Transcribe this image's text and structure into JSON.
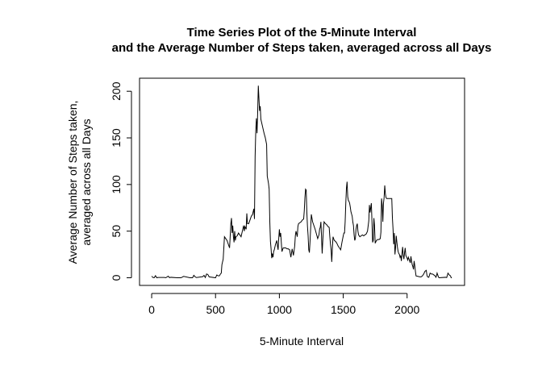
{
  "chart_data": {
    "type": "line",
    "title_lines": [
      "Time Series Plot of the 5-Minute Interval",
      "and the Average Number of Steps taken, averaged across all Days"
    ],
    "xlabel": "5-Minute Interval",
    "ylabel_lines": [
      "Average Number of Steps taken,",
      "averaged across all Days"
    ],
    "xlim": [
      -95,
      2450
    ],
    "ylim": [
      -8.2,
      214
    ],
    "x_ticks": [
      0,
      500,
      1000,
      1500,
      2000
    ],
    "x_tick_labels": [
      "0",
      "500",
      "1000",
      "1500",
      "2000"
    ],
    "y_ticks": [
      0,
      50,
      100,
      150,
      200
    ],
    "y_tick_labels": [
      "0",
      "50",
      "100",
      "150",
      "200"
    ],
    "grid": false,
    "series": [
      {
        "color": "#000000",
        "points": [
          [
            0,
            1.7
          ],
          [
            10,
            0.3
          ],
          [
            20,
            0.1
          ],
          [
            30,
            2.2
          ],
          [
            40,
            0.0
          ],
          [
            50,
            0.3
          ],
          [
            100,
            0.3
          ],
          [
            110,
            0.0
          ],
          [
            130,
            1.7
          ],
          [
            140,
            0.1
          ],
          [
            150,
            0.5
          ],
          [
            200,
            0.0
          ],
          [
            230,
            0.0
          ],
          [
            250,
            1.5
          ],
          [
            300,
            0.0
          ],
          [
            320,
            0.0
          ],
          [
            330,
            2.6
          ],
          [
            340,
            1.1
          ],
          [
            350,
            0.2
          ],
          [
            400,
            1.2
          ],
          [
            410,
            2.6
          ],
          [
            420,
            0.3
          ],
          [
            430,
            4.1
          ],
          [
            440,
            3.5
          ],
          [
            450,
            1.0
          ],
          [
            500,
            0.0
          ],
          [
            510,
            3.0
          ],
          [
            520,
            2.2
          ],
          [
            530,
            2.1
          ],
          [
            540,
            4.3
          ],
          [
            545,
            5.0
          ],
          [
            550,
            14.0
          ],
          [
            560,
            20.0
          ],
          [
            570,
            44.0
          ],
          [
            580,
            42.0
          ],
          [
            590,
            40.0
          ],
          [
            600,
            36.0
          ],
          [
            610,
            32.0
          ],
          [
            615,
            45.0
          ],
          [
            620,
            58.0
          ],
          [
            625,
            64.0
          ],
          [
            630,
            48.0
          ],
          [
            635,
            56.0
          ],
          [
            640,
            44.0
          ],
          [
            645,
            38.0
          ],
          [
            650,
            50.0
          ],
          [
            655,
            40.0
          ],
          [
            660,
            44.0
          ],
          [
            670,
            45.0
          ],
          [
            680,
            48.0
          ],
          [
            690,
            46.0
          ],
          [
            700,
            44.0
          ],
          [
            710,
            50.0
          ],
          [
            720,
            56.0
          ],
          [
            725,
            50.0
          ],
          [
            730,
            55.0
          ],
          [
            740,
            52.0
          ],
          [
            745,
            69.0
          ],
          [
            750,
            58.0
          ],
          [
            760,
            58.0
          ],
          [
            770,
            62.0
          ],
          [
            780,
            66.0
          ],
          [
            790,
            68.0
          ],
          [
            800,
            74.0
          ],
          [
            805,
            63.0
          ],
          [
            810,
            130.0
          ],
          [
            815,
            157.0
          ],
          [
            820,
            171.0
          ],
          [
            825,
            155.0
          ],
          [
            830,
            177.0
          ],
          [
            835,
            206.0
          ],
          [
            840,
            192.0
          ],
          [
            845,
            179.0
          ],
          [
            850,
            184.0
          ],
          [
            855,
            170.0
          ],
          [
            860,
            167.0
          ],
          [
            870,
            161.0
          ],
          [
            880,
            155.0
          ],
          [
            890,
            150.0
          ],
          [
            900,
            143.0
          ],
          [
            905,
            109.0
          ],
          [
            910,
            105.0
          ],
          [
            915,
            101.0
          ],
          [
            920,
            95.0
          ],
          [
            925,
            60.0
          ],
          [
            930,
            39.0
          ],
          [
            935,
            31.0
          ],
          [
            940,
            21.0
          ],
          [
            945,
            26.0
          ],
          [
            950,
            22.0
          ],
          [
            955,
            28.0
          ],
          [
            960,
            30.0
          ],
          [
            970,
            36.0
          ],
          [
            980,
            40.0
          ],
          [
            985,
            34.0
          ],
          [
            990,
            30.0
          ],
          [
            995,
            42.0
          ],
          [
            1000,
            52.0
          ],
          [
            1005,
            44.0
          ],
          [
            1010,
            48.0
          ],
          [
            1015,
            38.0
          ],
          [
            1020,
            28.0
          ],
          [
            1030,
            32.0
          ],
          [
            1040,
            32.0
          ],
          [
            1050,
            32.0
          ],
          [
            1060,
            31.0
          ],
          [
            1070,
            31.0
          ],
          [
            1080,
            30.0
          ],
          [
            1090,
            22.0
          ],
          [
            1100,
            31.0
          ],
          [
            1110,
            24.0
          ],
          [
            1120,
            34.0
          ],
          [
            1125,
            45.0
          ],
          [
            1130,
            50.0
          ],
          [
            1140,
            44.0
          ],
          [
            1145,
            55.0
          ],
          [
            1150,
            58.0
          ],
          [
            1160,
            59.0
          ],
          [
            1170,
            60.0
          ],
          [
            1180,
            62.0
          ],
          [
            1190,
            63.0
          ],
          [
            1195,
            72.0
          ],
          [
            1200,
            86.0
          ],
          [
            1205,
            95.0
          ],
          [
            1210,
            94.0
          ],
          [
            1215,
            70.0
          ],
          [
            1220,
            55.0
          ],
          [
            1225,
            45.0
          ],
          [
            1230,
            30.0
          ],
          [
            1235,
            27.0
          ],
          [
            1240,
            39.0
          ],
          [
            1250,
            68.0
          ],
          [
            1255,
            64.0
          ],
          [
            1260,
            60.0
          ],
          [
            1270,
            56.0
          ],
          [
            1280,
            52.0
          ],
          [
            1290,
            47.0
          ],
          [
            1300,
            42.0
          ],
          [
            1310,
            46.0
          ],
          [
            1315,
            52.0
          ],
          [
            1320,
            54.0
          ],
          [
            1325,
            60.0
          ],
          [
            1330,
            44.0
          ],
          [
            1335,
            26.0
          ],
          [
            1340,
            40.0
          ],
          [
            1345,
            53.0
          ],
          [
            1350,
            60.0
          ],
          [
            1360,
            58.0
          ],
          [
            1370,
            57.0
          ],
          [
            1380,
            55.0
          ],
          [
            1390,
            54.0
          ],
          [
            1395,
            44.0
          ],
          [
            1400,
            36.0
          ],
          [
            1405,
            30.0
          ],
          [
            1410,
            17.0
          ],
          [
            1415,
            32.0
          ],
          [
            1420,
            44.0
          ],
          [
            1430,
            40.0
          ],
          [
            1440,
            39.0
          ],
          [
            1450,
            37.0
          ],
          [
            1460,
            34.0
          ],
          [
            1470,
            32.0
          ],
          [
            1480,
            30.0
          ],
          [
            1490,
            38.0
          ],
          [
            1500,
            45.0
          ],
          [
            1505,
            48.0
          ],
          [
            1510,
            48.0
          ],
          [
            1515,
            60.0
          ],
          [
            1520,
            80.0
          ],
          [
            1525,
            96.0
          ],
          [
            1530,
            103.0
          ],
          [
            1535,
            87.0
          ],
          [
            1540,
            83.0
          ],
          [
            1545,
            82.0
          ],
          [
            1550,
            80.0
          ],
          [
            1555,
            76.0
          ],
          [
            1560,
            71.0
          ],
          [
            1570,
            66.0
          ],
          [
            1575,
            60.0
          ],
          [
            1580,
            56.0
          ],
          [
            1585,
            46.0
          ],
          [
            1590,
            40.0
          ],
          [
            1595,
            42.0
          ],
          [
            1600,
            52.0
          ],
          [
            1605,
            56.0
          ],
          [
            1610,
            58.0
          ],
          [
            1615,
            50.0
          ],
          [
            1620,
            46.0
          ],
          [
            1630,
            44.0
          ],
          [
            1640,
            45.0
          ],
          [
            1650,
            46.0
          ],
          [
            1660,
            45.0
          ],
          [
            1670,
            46.0
          ],
          [
            1680,
            47.0
          ],
          [
            1690,
            50.0
          ],
          [
            1700,
            61.0
          ],
          [
            1705,
            78.0
          ],
          [
            1710,
            70.0
          ],
          [
            1715,
            75.0
          ],
          [
            1720,
            80.0
          ],
          [
            1725,
            60.0
          ],
          [
            1730,
            38.0
          ],
          [
            1735,
            40.0
          ],
          [
            1740,
            64.0
          ],
          [
            1745,
            56.0
          ],
          [
            1750,
            37.0
          ],
          [
            1760,
            40.0
          ],
          [
            1770,
            41.0
          ],
          [
            1780,
            41.0
          ],
          [
            1790,
            42.0
          ],
          [
            1795,
            49.0
          ],
          [
            1800,
            85.0
          ],
          [
            1805,
            78.0
          ],
          [
            1810,
            60.0
          ],
          [
            1815,
            80.0
          ],
          [
            1820,
            86.0
          ],
          [
            1825,
            99.0
          ],
          [
            1830,
            90.0
          ],
          [
            1835,
            86.0
          ],
          [
            1840,
            85.0
          ],
          [
            1850,
            85.0
          ],
          [
            1860,
            85.0
          ],
          [
            1870,
            85.0
          ],
          [
            1880,
            85.0
          ],
          [
            1885,
            64.0
          ],
          [
            1890,
            52.0
          ],
          [
            1895,
            36.0
          ],
          [
            1900,
            48.0
          ],
          [
            1905,
            25.0
          ],
          [
            1910,
            33.0
          ],
          [
            1915,
            45.0
          ],
          [
            1920,
            38.0
          ],
          [
            1925,
            32.0
          ],
          [
            1930,
            28.0
          ],
          [
            1935,
            26.0
          ],
          [
            1940,
            25.0
          ],
          [
            1945,
            22.0
          ],
          [
            1950,
            24.0
          ],
          [
            1955,
            18.0
          ],
          [
            1960,
            26.0
          ],
          [
            1965,
            33.0
          ],
          [
            1970,
            24.0
          ],
          [
            1975,
            20.0
          ],
          [
            1980,
            27.0
          ],
          [
            1985,
            32.0
          ],
          [
            1990,
            24.0
          ],
          [
            2000,
            21.0
          ],
          [
            2005,
            19.0
          ],
          [
            2010,
            22.0
          ],
          [
            2015,
            20.0
          ],
          [
            2020,
            18.0
          ],
          [
            2025,
            16.0
          ],
          [
            2030,
            23.0
          ],
          [
            2035,
            18.0
          ],
          [
            2040,
            14.0
          ],
          [
            2045,
            12.0
          ],
          [
            2050,
            9.0
          ],
          [
            2055,
            18.0
          ],
          [
            2060,
            13.0
          ],
          [
            2065,
            7.0
          ],
          [
            2070,
            2.0
          ],
          [
            2100,
            1.0
          ],
          [
            2110,
            1.0
          ],
          [
            2120,
            2.0
          ],
          [
            2130,
            4.0
          ],
          [
            2140,
            7.0
          ],
          [
            2150,
            8.0
          ],
          [
            2155,
            3.0
          ],
          [
            2160,
            1.0
          ],
          [
            2170,
            0.5
          ],
          [
            2180,
            5.0
          ],
          [
            2190,
            4.0
          ],
          [
            2200,
            4.0
          ],
          [
            2210,
            3.0
          ],
          [
            2220,
            2.0
          ],
          [
            2225,
            0.5
          ],
          [
            2230,
            2.0
          ],
          [
            2235,
            5.0
          ],
          [
            2240,
            3.0
          ],
          [
            2245,
            1.0
          ],
          [
            2250,
            0.0
          ],
          [
            2300,
            0.5
          ],
          [
            2310,
            0.2
          ],
          [
            2320,
            5.0
          ],
          [
            2330,
            3.0
          ],
          [
            2340,
            2.0
          ],
          [
            2345,
            0.0
          ],
          [
            2350,
            0.0
          ]
        ]
      }
    ]
  }
}
